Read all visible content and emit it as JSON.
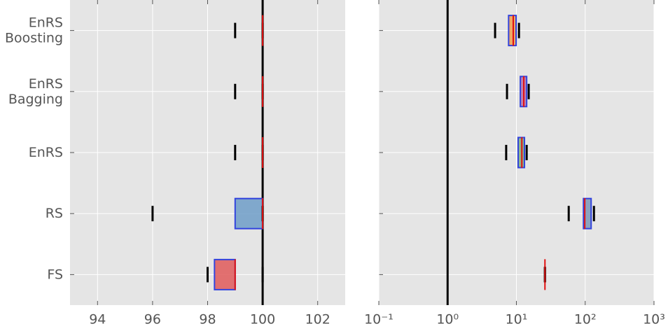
{
  "chart_data": [
    {
      "type": "box",
      "categories": [
        [
          "EnRS",
          "Boosting"
        ],
        [
          "EnRS",
          "Bagging"
        ],
        [
          "EnRS"
        ],
        [
          "RS"
        ],
        [
          "FS"
        ]
      ],
      "boxes": [
        {
          "whislo": 99,
          "q1": 100,
          "med": 100,
          "q3": 100,
          "whishi": 100,
          "color": "#e06666"
        },
        {
          "whislo": 99,
          "q1": 100,
          "med": 100,
          "q3": 100,
          "whishi": 100,
          "color": "#e06666"
        },
        {
          "whislo": 99,
          "q1": 100,
          "med": 100,
          "q3": 100,
          "whishi": 100,
          "color": "#e06666"
        },
        {
          "whislo": 96,
          "q1": 99,
          "med": 100,
          "q3": 100,
          "whishi": 100,
          "color": "#6e9ec8"
        },
        {
          "whislo": 98,
          "q1": 98.25,
          "med": 99,
          "q3": 99,
          "whishi": 100,
          "color": "#e05a5a"
        }
      ],
      "reference_line": 100,
      "xlim": [
        93,
        103
      ],
      "xticks": [
        94,
        96,
        98,
        100,
        102
      ],
      "log_scale": false,
      "grid": true
    },
    {
      "type": "box",
      "boxes": [
        {
          "whislo": 4.9,
          "q1": 7.7,
          "med": 9.0,
          "q3": 9.9,
          "whishi": 10.9,
          "color": "#f0a050"
        },
        {
          "whislo": 7.3,
          "q1": 11.4,
          "med": 12.8,
          "q3": 14.1,
          "whishi": 15.1,
          "color": "#b86ea8"
        },
        {
          "whislo": 7.1,
          "q1": 10.6,
          "med": 12.0,
          "q3": 13.1,
          "whishi": 14.1,
          "color": "#7fb07f"
        },
        {
          "whislo": 57.6,
          "q1": 94.3,
          "med": 98.6,
          "q3": 122,
          "whishi": 134,
          "color": "#7a98b8"
        },
        {
          "whislo": 26,
          "q1": 26,
          "med": 26,
          "q3": 26,
          "whishi": 26,
          "color": "#e05a5a"
        }
      ],
      "reference_line": 1,
      "xlim": [
        0.1,
        1000
      ],
      "xticks": [
        {
          "value": 0.1,
          "label": "10⁻¹"
        },
        {
          "value": 1,
          "label": "10⁰"
        },
        {
          "value": 10,
          "label": "10¹"
        },
        {
          "value": 100,
          "label": "10²"
        },
        {
          "value": 1000,
          "label": "10³"
        }
      ],
      "log_scale": true,
      "grid": true
    }
  ]
}
